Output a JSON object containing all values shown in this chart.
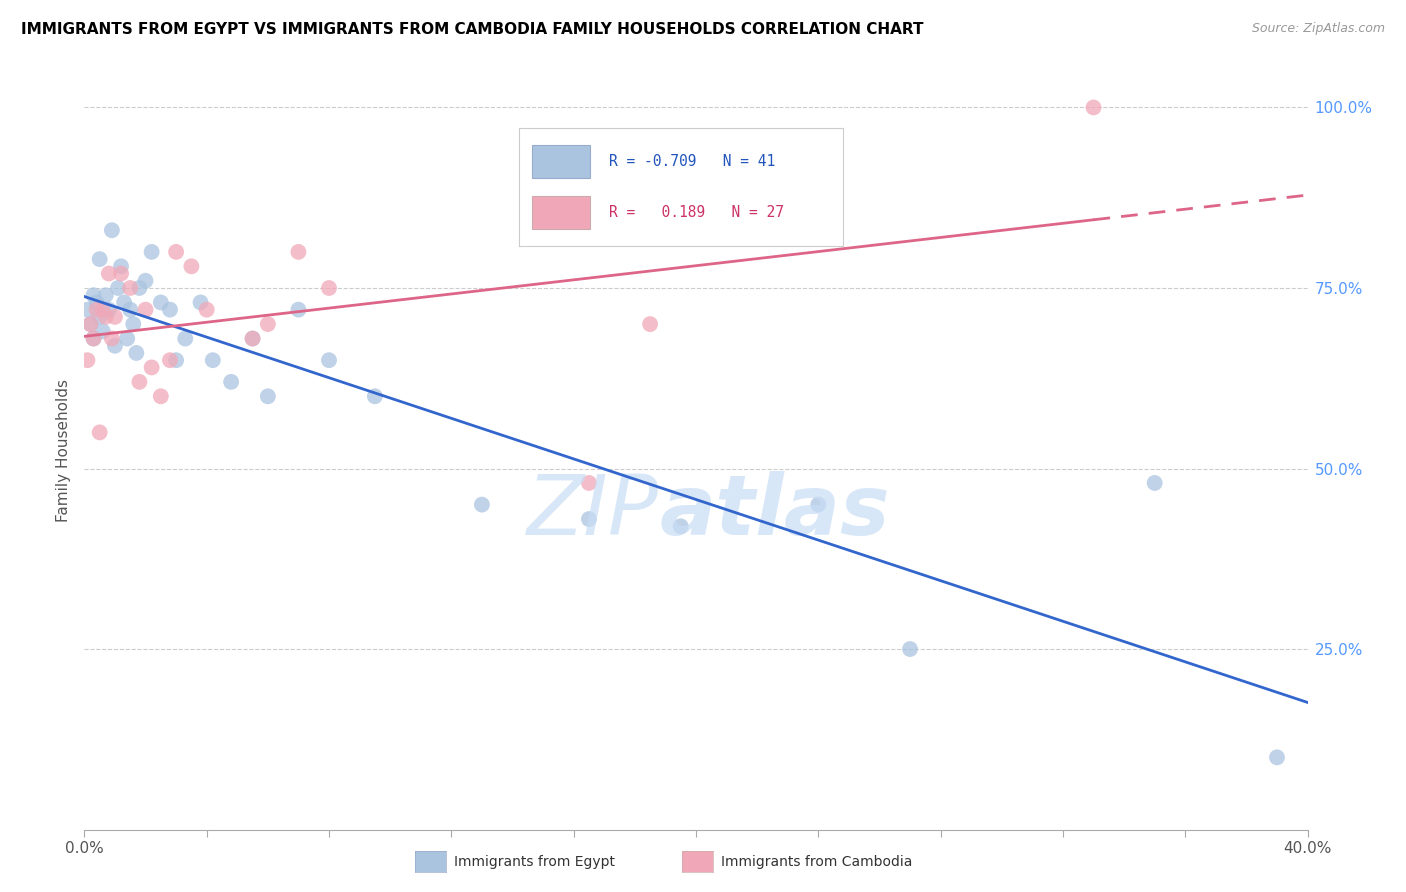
{
  "title": "IMMIGRANTS FROM EGYPT VS IMMIGRANTS FROM CAMBODIA FAMILY HOUSEHOLDS CORRELATION CHART",
  "source": "Source: ZipAtlas.com",
  "ylabel": "Family Households",
  "legend_egypt_R": "-0.709",
  "legend_egypt_N": "41",
  "legend_cambodia_R": "0.189",
  "legend_cambodia_N": "27",
  "egypt_color": "#aac4e0",
  "cambodia_color": "#f0a8b8",
  "egypt_line_color": "#3366cc",
  "cambodia_line_color": "#dd6688",
  "egypt_x": [
    0.001,
    0.002,
    0.003,
    0.003,
    0.004,
    0.005,
    0.005,
    0.006,
    0.007,
    0.008,
    0.009,
    0.01,
    0.011,
    0.012,
    0.013,
    0.014,
    0.015,
    0.016,
    0.017,
    0.018,
    0.02,
    0.022,
    0.025,
    0.028,
    0.03,
    0.033,
    0.038,
    0.042,
    0.048,
    0.055,
    0.06,
    0.07,
    0.08,
    0.095,
    0.13,
    0.165,
    0.195,
    0.24,
    0.27,
    0.35,
    0.39
  ],
  "egypt_y": [
    0.72,
    0.7,
    0.68,
    0.74,
    0.73,
    0.71,
    0.79,
    0.69,
    0.74,
    0.72,
    0.83,
    0.67,
    0.75,
    0.78,
    0.73,
    0.68,
    0.72,
    0.7,
    0.66,
    0.75,
    0.76,
    0.8,
    0.73,
    0.72,
    0.65,
    0.68,
    0.73,
    0.65,
    0.62,
    0.68,
    0.6,
    0.72,
    0.65,
    0.6,
    0.45,
    0.43,
    0.42,
    0.45,
    0.25,
    0.48,
    0.1
  ],
  "cambodia_x": [
    0.001,
    0.002,
    0.003,
    0.004,
    0.005,
    0.006,
    0.007,
    0.008,
    0.009,
    0.01,
    0.012,
    0.015,
    0.018,
    0.02,
    0.022,
    0.025,
    0.028,
    0.03,
    0.035,
    0.04,
    0.055,
    0.06,
    0.07,
    0.08,
    0.165,
    0.185,
    0.33
  ],
  "cambodia_y": [
    0.65,
    0.7,
    0.68,
    0.72,
    0.55,
    0.72,
    0.71,
    0.77,
    0.68,
    0.71,
    0.77,
    0.75,
    0.62,
    0.72,
    0.64,
    0.6,
    0.65,
    0.8,
    0.78,
    0.72,
    0.68,
    0.7,
    0.8,
    0.75,
    0.48,
    0.7,
    1.0
  ],
  "xmin": 0.0,
  "xmax": 0.4,
  "ymin": 0.0,
  "ymax": 1.05,
  "xtick_positions": [
    0.0,
    0.04,
    0.08,
    0.12,
    0.16,
    0.2,
    0.24,
    0.28,
    0.32,
    0.36,
    0.4
  ],
  "ytick_positions": [
    0.0,
    0.25,
    0.5,
    0.75,
    1.0
  ]
}
